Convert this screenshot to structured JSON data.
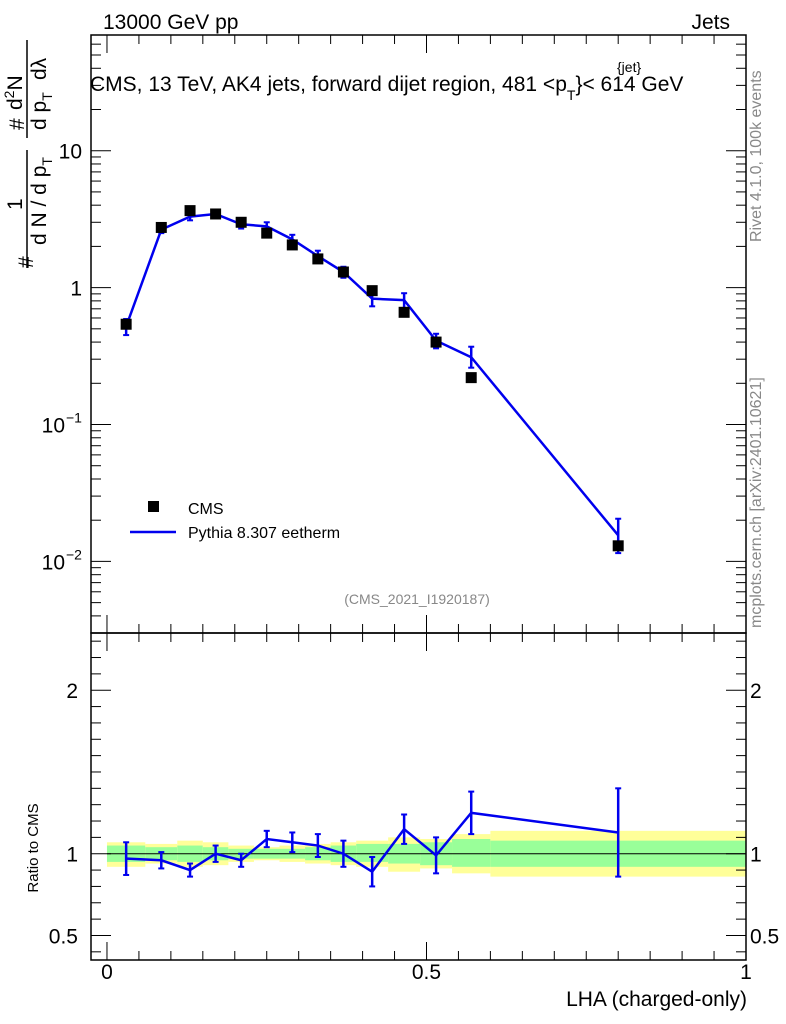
{
  "header": {
    "energy": "13000 GeV pp",
    "category": "Jets",
    "title_main": "CMS, 13 TeV, AK4 jets, forward dijet region, 481 <p",
    "title_sup": "{jet}",
    "title_sub": "T",
    "title_tail": "}< 614 GeV",
    "side_version": "Rivet 4.1.0,  100k events",
    "side_source": "mcplots.cern.ch [arXiv:2401.10621]",
    "analysis_id": "(CMS_2021_I1920187)"
  },
  "colors": {
    "mc": "#0000ee",
    "data": "#000000",
    "band_inner": "#99ff99",
    "band_outer": "#ffff99",
    "grey_text": "#888888"
  },
  "chart_data": [
    {
      "type": "scatter",
      "panel": "main",
      "yscale": "log",
      "ylabel_parts": [
        "#",
        "1",
        "d N / d p",
        "T",
        "#",
        "d p",
        "T",
        "d",
        "2",
        "N",
        "d",
        "λ"
      ],
      "xlim": [
        -0.025,
        1.0
      ],
      "ylim": [
        0.003,
        70
      ],
      "y_ticks": [
        {
          "value": 10,
          "label": "10"
        },
        {
          "value": 1,
          "label": "1"
        },
        {
          "value": 0.1,
          "label": "10",
          "exp": "−1"
        },
        {
          "value": 0.01,
          "label": "10",
          "exp": "−2"
        }
      ],
      "legend": {
        "position": "lower-left",
        "entries": [
          "CMS",
          "Pythia 8.307 eetherm"
        ]
      },
      "series": [
        {
          "name": "CMS",
          "style": "markers",
          "x": [
            0.03,
            0.085,
            0.13,
            0.17,
            0.21,
            0.25,
            0.29,
            0.33,
            0.37,
            0.415,
            0.465,
            0.515,
            0.57,
            0.8
          ],
          "y": [
            0.54,
            2.75,
            3.65,
            3.45,
            3.0,
            2.5,
            2.05,
            1.62,
            1.3,
            0.95,
            0.66,
            0.4,
            0.22,
            0.013
          ]
        },
        {
          "name": "Pythia 8.307 eetherm",
          "style": "line",
          "x": [
            0.03,
            0.085,
            0.13,
            0.17,
            0.21,
            0.25,
            0.29,
            0.33,
            0.37,
            0.415,
            0.465,
            0.515,
            0.57,
            0.8
          ],
          "y": [
            0.52,
            2.65,
            3.3,
            3.45,
            2.9,
            2.8,
            2.25,
            1.7,
            1.3,
            0.83,
            0.81,
            0.41,
            0.31,
            0.0155
          ],
          "y_err_low": [
            0.07,
            0.15,
            0.2,
            0.18,
            0.2,
            0.2,
            0.18,
            0.16,
            0.12,
            0.1,
            0.1,
            0.05,
            0.05,
            0.004
          ],
          "y_err_high": [
            0.07,
            0.15,
            0.2,
            0.18,
            0.2,
            0.2,
            0.18,
            0.16,
            0.12,
            0.1,
            0.1,
            0.05,
            0.06,
            0.005
          ]
        }
      ]
    },
    {
      "type": "line",
      "panel": "ratio",
      "ylabel": "Ratio to CMS",
      "xlabel": "LHA (charged-only)",
      "xlim": [
        -0.025,
        1.0
      ],
      "ylim": [
        0.35,
        2.35
      ],
      "y_ticks": [
        {
          "value": 2,
          "label": "2"
        },
        {
          "value": 1,
          "label": "1"
        },
        {
          "value": 0.5,
          "label": "0.5"
        }
      ],
      "x_ticks": [
        {
          "value": 0,
          "label": "0"
        },
        {
          "value": 0.5,
          "label": "0.5"
        },
        {
          "value": 1,
          "label": "1"
        }
      ],
      "uncertainty_bands": [
        {
          "x0": 0.0,
          "x1": 0.06,
          "inner": [
            0.95,
            1.05
          ],
          "outer": [
            0.92,
            1.07
          ]
        },
        {
          "x0": 0.06,
          "x1": 0.11,
          "inner": [
            0.96,
            1.04
          ],
          "outer": [
            0.94,
            1.06
          ]
        },
        {
          "x0": 0.11,
          "x1": 0.15,
          "inner": [
            0.95,
            1.05
          ],
          "outer": [
            0.92,
            1.08
          ]
        },
        {
          "x0": 0.15,
          "x1": 0.19,
          "inner": [
            0.96,
            1.04
          ],
          "outer": [
            0.93,
            1.07
          ]
        },
        {
          "x0": 0.19,
          "x1": 0.23,
          "inner": [
            0.97,
            1.03
          ],
          "outer": [
            0.95,
            1.05
          ]
        },
        {
          "x0": 0.23,
          "x1": 0.27,
          "inner": [
            0.97,
            1.03
          ],
          "outer": [
            0.96,
            1.04
          ]
        },
        {
          "x0": 0.27,
          "x1": 0.31,
          "inner": [
            0.97,
            1.03
          ],
          "outer": [
            0.95,
            1.05
          ]
        },
        {
          "x0": 0.31,
          "x1": 0.35,
          "inner": [
            0.96,
            1.04
          ],
          "outer": [
            0.94,
            1.06
          ]
        },
        {
          "x0": 0.35,
          "x1": 0.39,
          "inner": [
            0.95,
            1.05
          ],
          "outer": [
            0.93,
            1.07
          ]
        },
        {
          "x0": 0.39,
          "x1": 0.44,
          "inner": [
            0.95,
            1.06
          ],
          "outer": [
            0.92,
            1.08
          ]
        },
        {
          "x0": 0.44,
          "x1": 0.49,
          "inner": [
            0.94,
            1.06
          ],
          "outer": [
            0.89,
            1.1
          ]
        },
        {
          "x0": 0.49,
          "x1": 0.54,
          "inner": [
            0.93,
            1.07
          ],
          "outer": [
            0.91,
            1.09
          ]
        },
        {
          "x0": 0.54,
          "x1": 0.6,
          "inner": [
            0.92,
            1.09
          ],
          "outer": [
            0.88,
            1.12
          ]
        },
        {
          "x0": 0.6,
          "x1": 1.0,
          "inner": [
            0.92,
            1.08
          ],
          "outer": [
            0.86,
            1.14
          ]
        }
      ],
      "series": [
        {
          "name": "Pythia 8.307 eetherm / CMS",
          "x": [
            0.03,
            0.085,
            0.13,
            0.17,
            0.21,
            0.25,
            0.29,
            0.33,
            0.37,
            0.415,
            0.465,
            0.515,
            0.57,
            0.8
          ],
          "y": [
            0.97,
            0.96,
            0.9,
            1.0,
            0.96,
            1.09,
            1.07,
            1.05,
            1.0,
            0.89,
            1.15,
            0.99,
            1.25,
            1.13
          ],
          "y_err_low": [
            0.1,
            0.05,
            0.04,
            0.05,
            0.04,
            0.05,
            0.06,
            0.07,
            0.08,
            0.09,
            0.09,
            0.11,
            0.13,
            0.27
          ],
          "y_err_high": [
            0.1,
            0.05,
            0.04,
            0.05,
            0.04,
            0.05,
            0.06,
            0.07,
            0.08,
            0.09,
            0.09,
            0.11,
            0.13,
            0.27
          ]
        }
      ]
    }
  ]
}
